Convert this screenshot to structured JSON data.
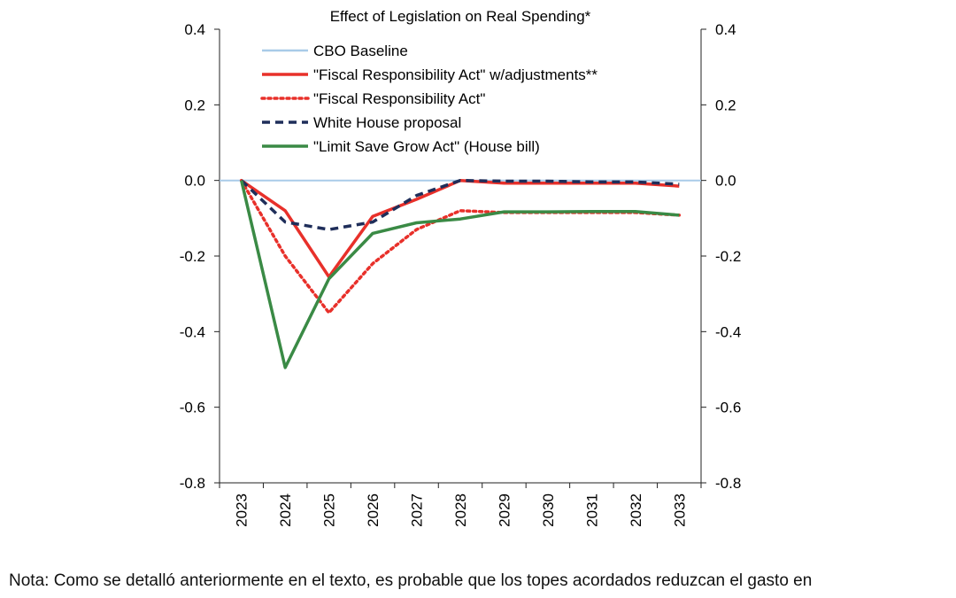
{
  "chart_data": {
    "type": "line",
    "title": "Effect of Legislation on Real Spending*",
    "xlabel": "",
    "ylabel": "",
    "x": [
      "2023",
      "2024",
      "2025",
      "2026",
      "2027",
      "2028",
      "2029",
      "2030",
      "2031",
      "2032",
      "2033"
    ],
    "ylim": [
      -0.8,
      0.4
    ],
    "yticks": [
      "0.4",
      "0.2",
      "0.0",
      "-0.2",
      "-0.4",
      "-0.6",
      "-0.8"
    ],
    "y2ticks": [
      "0.4",
      "0.2",
      "0.0",
      "-0.2",
      "-0.4",
      "-0.6",
      "-0.8"
    ],
    "legend_position": "top",
    "grid": false,
    "series": [
      {
        "name": "CBO Baseline",
        "color": "#a9cbe8",
        "style": "solid",
        "values": [
          0,
          0,
          0,
          0,
          0,
          0,
          0,
          0,
          0,
          0,
          0
        ]
      },
      {
        "name": "\"Fiscal Responsibility Act\" w/adjustments**",
        "color": "#e8302a",
        "style": "solid",
        "values": [
          0,
          -0.08,
          -0.255,
          -0.095,
          -0.05,
          0.0,
          -0.007,
          -0.007,
          -0.007,
          -0.007,
          -0.015
        ]
      },
      {
        "name": "\"Fiscal Responsibility Act\"",
        "color": "#e8302a",
        "style": "dotted",
        "values": [
          0,
          -0.2,
          -0.35,
          -0.22,
          -0.13,
          -0.08,
          -0.085,
          -0.085,
          -0.085,
          -0.085,
          -0.092
        ]
      },
      {
        "name": "White House proposal",
        "color": "#1f2e5a",
        "style": "dashed",
        "values": [
          0,
          -0.11,
          -0.13,
          -0.11,
          -0.04,
          0.0,
          -0.002,
          -0.002,
          -0.004,
          -0.004,
          -0.01
        ]
      },
      {
        "name": "\"Limit Save Grow Act\" (House bill)",
        "color": "#3a8a45",
        "style": "solid",
        "values": [
          0,
          -0.495,
          -0.26,
          -0.14,
          -0.112,
          -0.102,
          -0.083,
          -0.083,
          -0.082,
          -0.082,
          -0.092
        ]
      }
    ]
  },
  "note": {
    "label": "Nota:",
    "text": " Como se detalló anteriormente en el texto, es probable que los topes acordados reduzcan el gasto en"
  }
}
